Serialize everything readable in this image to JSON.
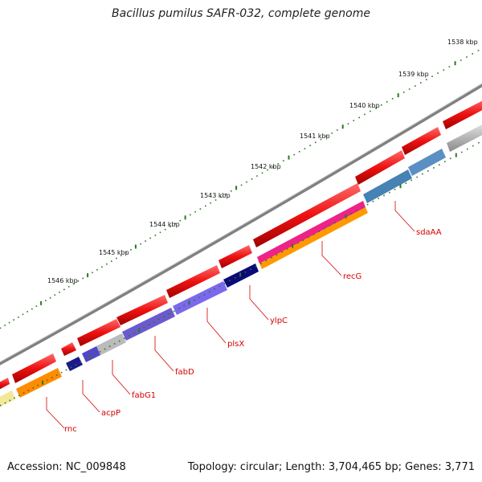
{
  "title": "Bacillus pumilus SAFR-032, complete genome",
  "accession": "Accession: NC_009848",
  "summary": "Topology: circular; Length: 3,704,465 bp; Genes: 3,771",
  "scale_labels": [
    "1538 kbp",
    "1539 kbp",
    "1540 kbp",
    "1541 kbp",
    "1542 kbp",
    "1543 kbp",
    "1544 kbp",
    "1545 kbp",
    "1546 kbp"
  ],
  "gene_labels": [
    "sdaAA",
    "recG",
    "ylpC",
    "plsX",
    "fabD",
    "fabG1",
    "acpP",
    "rnc"
  ],
  "colors": {
    "tick": "#2a7a1e",
    "backbone": "#7a7a7a",
    "gene_forward": "#ee1111",
    "label": "#d40000"
  }
}
